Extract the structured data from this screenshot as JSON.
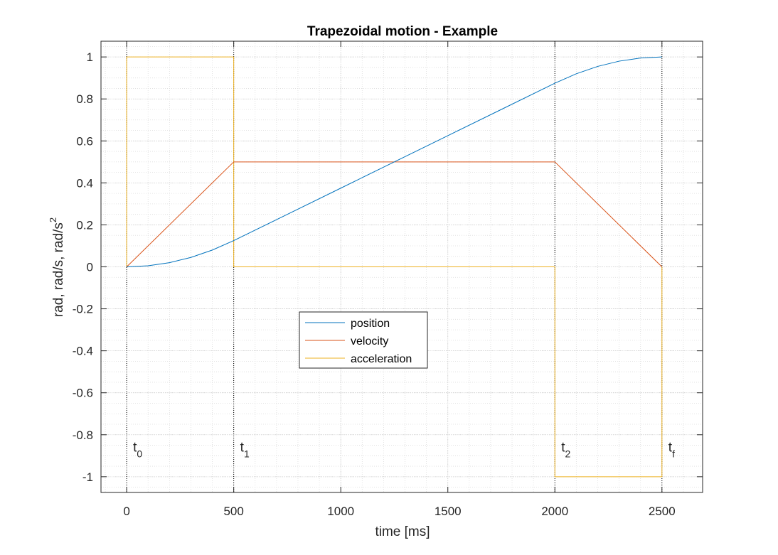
{
  "chart_data": {
    "type": "line",
    "title": "Trapezoidal motion - Example",
    "xlabel": "time [ms]",
    "ylabel_base": "rad, rad/s, rad/s",
    "ylabel_sup": "2",
    "xlim": [
      -120,
      2690
    ],
    "ylim": [
      -1.075,
      1.075
    ],
    "xticks": [
      0,
      500,
      1000,
      1500,
      2000,
      2500
    ],
    "yticks": [
      -1,
      -0.8,
      -0.6,
      -0.4,
      -0.2,
      0,
      0.2,
      0.4,
      0.6,
      0.8,
      1
    ],
    "grid": true,
    "minor_grid": true,
    "legend": "center",
    "series": [
      {
        "name": "position",
        "color": "#0072BD",
        "points": [
          [
            0,
            0
          ],
          [
            100,
            0.005
          ],
          [
            200,
            0.02
          ],
          [
            300,
            0.045
          ],
          [
            400,
            0.08
          ],
          [
            500,
            0.125
          ],
          [
            750,
            0.25
          ],
          [
            1000,
            0.375
          ],
          [
            1250,
            0.5
          ],
          [
            1500,
            0.625
          ],
          [
            1750,
            0.75
          ],
          [
            2000,
            0.875
          ],
          [
            2100,
            0.92
          ],
          [
            2200,
            0.955
          ],
          [
            2300,
            0.98
          ],
          [
            2400,
            0.995
          ],
          [
            2500,
            1
          ]
        ]
      },
      {
        "name": "velocity",
        "color": "#D95319",
        "points": [
          [
            0,
            0
          ],
          [
            500,
            0.5
          ],
          [
            2000,
            0.5
          ],
          [
            2500,
            0
          ]
        ]
      },
      {
        "name": "acceleration",
        "color": "#EDB120",
        "points": [
          [
            0,
            0
          ],
          [
            0,
            1
          ],
          [
            500,
            1
          ],
          [
            500,
            0
          ],
          [
            2000,
            0
          ],
          [
            2000,
            -1
          ],
          [
            2500,
            -1
          ],
          [
            2500,
            0
          ]
        ]
      }
    ],
    "annotations": [
      {
        "base": "t",
        "sub": "0",
        "x": 0
      },
      {
        "base": "t",
        "sub": "1",
        "x": 500
      },
      {
        "base": "t",
        "sub": "2",
        "x": 2000
      },
      {
        "base": "t",
        "sub": "f",
        "x": 2500
      }
    ],
    "annotation_y": -0.88
  }
}
